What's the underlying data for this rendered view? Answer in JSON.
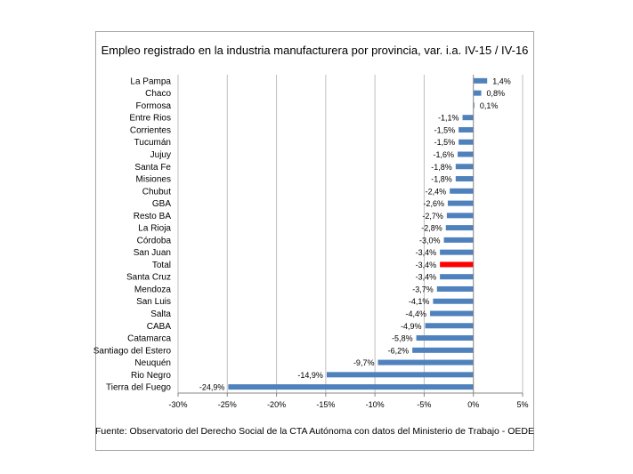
{
  "chart_data": {
    "type": "bar",
    "orientation": "horizontal",
    "title": "Empleo registrado en la industria manufacturera por provincia, var. i.a. IV-15 / IV-16",
    "categories": [
      "La Pampa",
      "Chaco",
      "Formosa",
      "Entre Rios",
      "Corrientes",
      "Tucumán",
      "Jujuy",
      "Santa Fe",
      "Misiones",
      "Chubut",
      "GBA",
      "Resto BA",
      "La Rioja",
      "Córdoba",
      "San Juan",
      "Total",
      "Santa Cruz",
      "Mendoza",
      "San Luis",
      "Salta",
      "CABA",
      "Catamarca",
      "Santiago del Estero",
      "Neuquén",
      "Rio Negro",
      "Tierra del Fuego"
    ],
    "values": [
      1.4,
      0.8,
      0.1,
      -1.1,
      -1.5,
      -1.5,
      -1.6,
      -1.8,
      -1.8,
      -2.4,
      -2.6,
      -2.7,
      -2.8,
      -3.0,
      -3.4,
      -3.4,
      -3.4,
      -3.7,
      -4.1,
      -4.4,
      -4.9,
      -5.8,
      -6.2,
      -9.7,
      -14.9,
      -24.9
    ],
    "data_labels": [
      "1,4%",
      "0,8%",
      "0,1%",
      "-1,1%",
      "-1,5%",
      "-1,5%",
      "-1,6%",
      "-1,8%",
      "-1,8%",
      "-2,4%",
      "-2,6%",
      "-2,7%",
      "-2,8%",
      "-3,0%",
      "-3,4%",
      "-3,4%",
      "-3,4%",
      "-3,7%",
      "-4,1%",
      "-4,4%",
      "-4,9%",
      "-5,8%",
      "-6,2%",
      "-9,7%",
      "-14,9%",
      "-24,9%"
    ],
    "highlight": "Total",
    "xlim": [
      -30,
      5
    ],
    "xticks": [
      -30,
      -25,
      -20,
      -15,
      -10,
      -5,
      0,
      5
    ],
    "xtick_labels": [
      "-30%",
      "-25%",
      "-20%",
      "-15%",
      "-10%",
      "-5%",
      "0%",
      "5%"
    ],
    "grid": "vertical",
    "xlabel": "",
    "ylabel": "",
    "colors": {
      "bar": "#4f81bd",
      "highlight": "#ff0000",
      "grid": "#bfbfbf"
    }
  },
  "source_note": "Fuente: Observatorio del Derecho Social de la CTA Autónoma con datos del Ministerio de Trabajo - OEDE"
}
